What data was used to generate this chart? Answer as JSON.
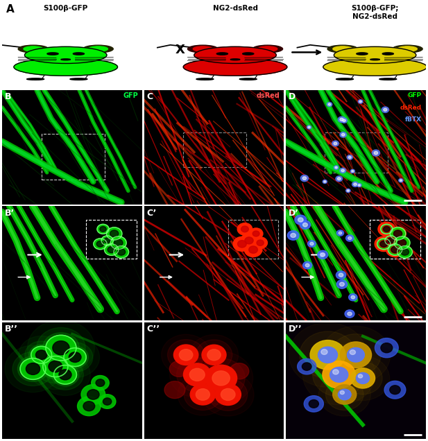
{
  "panel_A_label": "A",
  "panel_B_label": "B",
  "panel_C_label": "C",
  "panel_D_label": "D",
  "panel_B_prime_label": "B’",
  "panel_C_prime_label": "C’",
  "panel_D_prime_label": "D’",
  "panel_B_dprime_label": "B’’",
  "panel_C_dprime_label": "C’’",
  "panel_D_dprime_label": "D’’",
  "mouse1_label": "S100β-GFP",
  "mouse2_label": "NG2-dsRed",
  "mouse3_label": "S100β-GFP;\nNG2-dsRed",
  "cross_symbol": "X",
  "gfp_label": "GFP",
  "dsred_label": "dsRed",
  "combo_labels": [
    "GFP",
    "dsRed",
    "fBTX"
  ],
  "combo_colors": [
    "#00ff00",
    "#ff2200",
    "#6699ff"
  ],
  "mouse1_color": "#00ee00",
  "mouse2_color": "#dd0000",
  "mouse3_color": "#ddcc00",
  "mouse_outline": "#222200",
  "mouse_ear_dark": "#111100",
  "figure_bg": "#ffffff",
  "mic_bg": "#000000",
  "green_fiber": "#00cc00",
  "green_bright": "#33ff33",
  "red_fiber": "#aa0000",
  "red_bright": "#ff2200",
  "white": "#ffffff",
  "gray_box": "#aaaaaa"
}
